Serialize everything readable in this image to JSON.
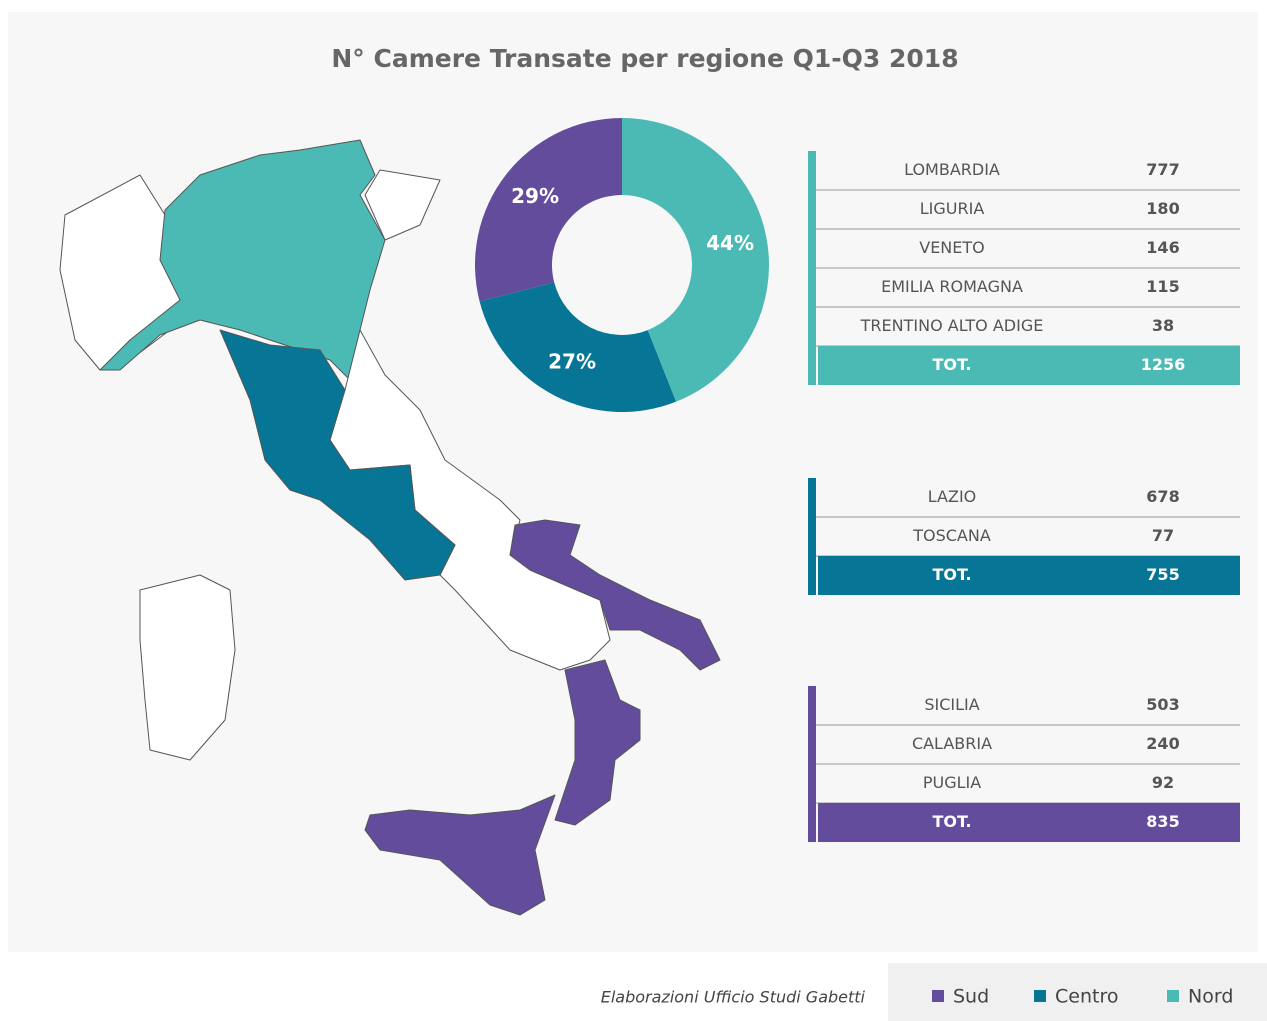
{
  "chart_data": {
    "type": "pie",
    "title": "N° Camere Transate per regione Q1-Q3 2018",
    "categories": [
      "Sud",
      "Centro",
      "Nord"
    ],
    "values": [
      29,
      27,
      44
    ],
    "value_labels": [
      "29%",
      "27%",
      "44%"
    ],
    "colors": [
      "#644c9c",
      "#077595",
      "#4bbab4"
    ]
  },
  "tables": [
    {
      "color": "#4bbab4",
      "rows": [
        [
          "LOMBARDIA",
          777
        ],
        [
          "LIGURIA",
          180
        ],
        [
          "VENETO",
          146
        ],
        [
          "EMILIA ROMAGNA",
          115
        ],
        [
          "TRENTINO ALTO ADIGE",
          38
        ]
      ],
      "total": [
        "TOT.",
        1256
      ]
    },
    {
      "color": "#077595",
      "rows": [
        [
          "LAZIO",
          678
        ],
        [
          "TOSCANA",
          77
        ]
      ],
      "total": [
        "TOT.",
        755
      ]
    },
    {
      "color": "#644c9c",
      "rows": [
        [
          "SICILIA",
          503
        ],
        [
          "CALABRIA",
          240
        ],
        [
          "PUGLIA",
          92
        ]
      ],
      "total": [
        "TOT.",
        835
      ]
    }
  ],
  "footer": "Elaborazioni Ufficio Studi Gabetti"
}
